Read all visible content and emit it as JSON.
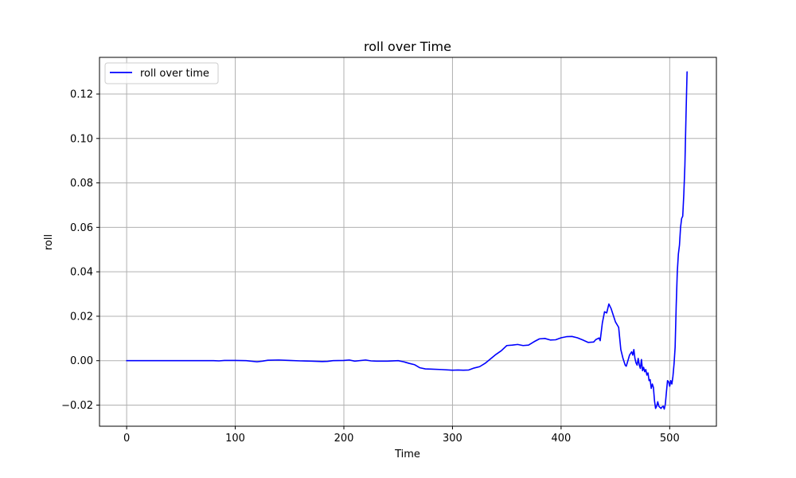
{
  "chart_data": {
    "type": "line",
    "title": "roll over Time",
    "xlabel": "Time",
    "ylabel": "roll",
    "xlim": [
      -25,
      543
    ],
    "ylim": [
      -0.0295,
      0.1365
    ],
    "xticks": [
      0,
      100,
      200,
      300,
      400,
      500
    ],
    "xtick_labels": [
      "0",
      "100",
      "200",
      "300",
      "400",
      "500"
    ],
    "yticks": [
      -0.02,
      0.0,
      0.02,
      0.04,
      0.06,
      0.08,
      0.1,
      0.12
    ],
    "ytick_labels": [
      "−0.02",
      "0.00",
      "0.02",
      "0.04",
      "0.06",
      "0.08",
      "0.10",
      "0.12"
    ],
    "grid": true,
    "legend_position": "top-left",
    "series": [
      {
        "name": "roll over time",
        "color": "#0000ff",
        "x": [
          0,
          20,
          40,
          60,
          80,
          85,
          90,
          100,
          110,
          120,
          125,
          130,
          140,
          150,
          160,
          170,
          180,
          185,
          190,
          200,
          205,
          210,
          220,
          225,
          230,
          240,
          250,
          255,
          260,
          265,
          270,
          275,
          280,
          290,
          300,
          305,
          310,
          315,
          320,
          325,
          330,
          335,
          340,
          345,
          350,
          355,
          360,
          365,
          370,
          375,
          380,
          385,
          390,
          395,
          400,
          405,
          410,
          415,
          420,
          425,
          430,
          432,
          435,
          436,
          438,
          440,
          442,
          444,
          446,
          448,
          450,
          453,
          455,
          457,
          459,
          460,
          462,
          463,
          465,
          466,
          467,
          468,
          469,
          470,
          471,
          472,
          473,
          474,
          475,
          476,
          477,
          478,
          479,
          480,
          481,
          482,
          483,
          484,
          485,
          486,
          487,
          488,
          489,
          490,
          491,
          492,
          493,
          494,
          495,
          496,
          497,
          498,
          499,
          500,
          501,
          502,
          503,
          504,
          505,
          506,
          507,
          508,
          509,
          510,
          511,
          512,
          513,
          514,
          515,
          516
        ],
        "y": [
          0.0,
          0.0,
          0.0,
          0.0,
          0.0,
          -0.0001,
          0.0001,
          0.0001,
          0.0,
          -0.0005,
          -0.0002,
          0.0002,
          0.0003,
          0.0001,
          -0.0001,
          -0.0002,
          -0.0004,
          -0.0003,
          0.0,
          0.0001,
          0.0003,
          -0.0002,
          0.0003,
          -0.0001,
          -0.0002,
          -0.0002,
          0.0,
          -0.0005,
          -0.0012,
          -0.0018,
          -0.0032,
          -0.0037,
          -0.0038,
          -0.004,
          -0.0043,
          -0.0042,
          -0.0043,
          -0.0042,
          -0.0033,
          -0.0027,
          -0.0012,
          0.0008,
          0.0028,
          0.0045,
          0.0068,
          0.007,
          0.0073,
          0.0068,
          0.007,
          0.0085,
          0.0098,
          0.01,
          0.0093,
          0.0094,
          0.0103,
          0.0108,
          0.0109,
          0.0103,
          0.0093,
          0.0082,
          0.0084,
          0.0095,
          0.0102,
          0.009,
          0.017,
          0.022,
          0.0215,
          0.0255,
          0.0235,
          0.0205,
          0.0175,
          0.015,
          0.005,
          0.001,
          -0.002,
          -0.0025,
          0.0008,
          0.0025,
          0.004,
          0.0025,
          0.005,
          0.001,
          -0.001,
          -0.002,
          0.001,
          -0.002,
          -0.0035,
          0.0005,
          -0.0045,
          -0.003,
          -0.005,
          -0.004,
          -0.0065,
          -0.0055,
          -0.009,
          -0.0085,
          -0.0125,
          -0.0105,
          -0.012,
          -0.018,
          -0.0215,
          -0.0205,
          -0.0185,
          -0.0205,
          -0.021,
          -0.0215,
          -0.0208,
          -0.0205,
          -0.0218,
          -0.0195,
          -0.014,
          -0.009,
          -0.0095,
          -0.0115,
          -0.009,
          -0.0105,
          -0.007,
          -0.0015,
          0.006,
          0.025,
          0.04,
          0.048,
          0.052,
          0.06,
          0.064,
          0.065,
          0.075,
          0.088,
          0.11,
          0.13
        ]
      }
    ]
  }
}
